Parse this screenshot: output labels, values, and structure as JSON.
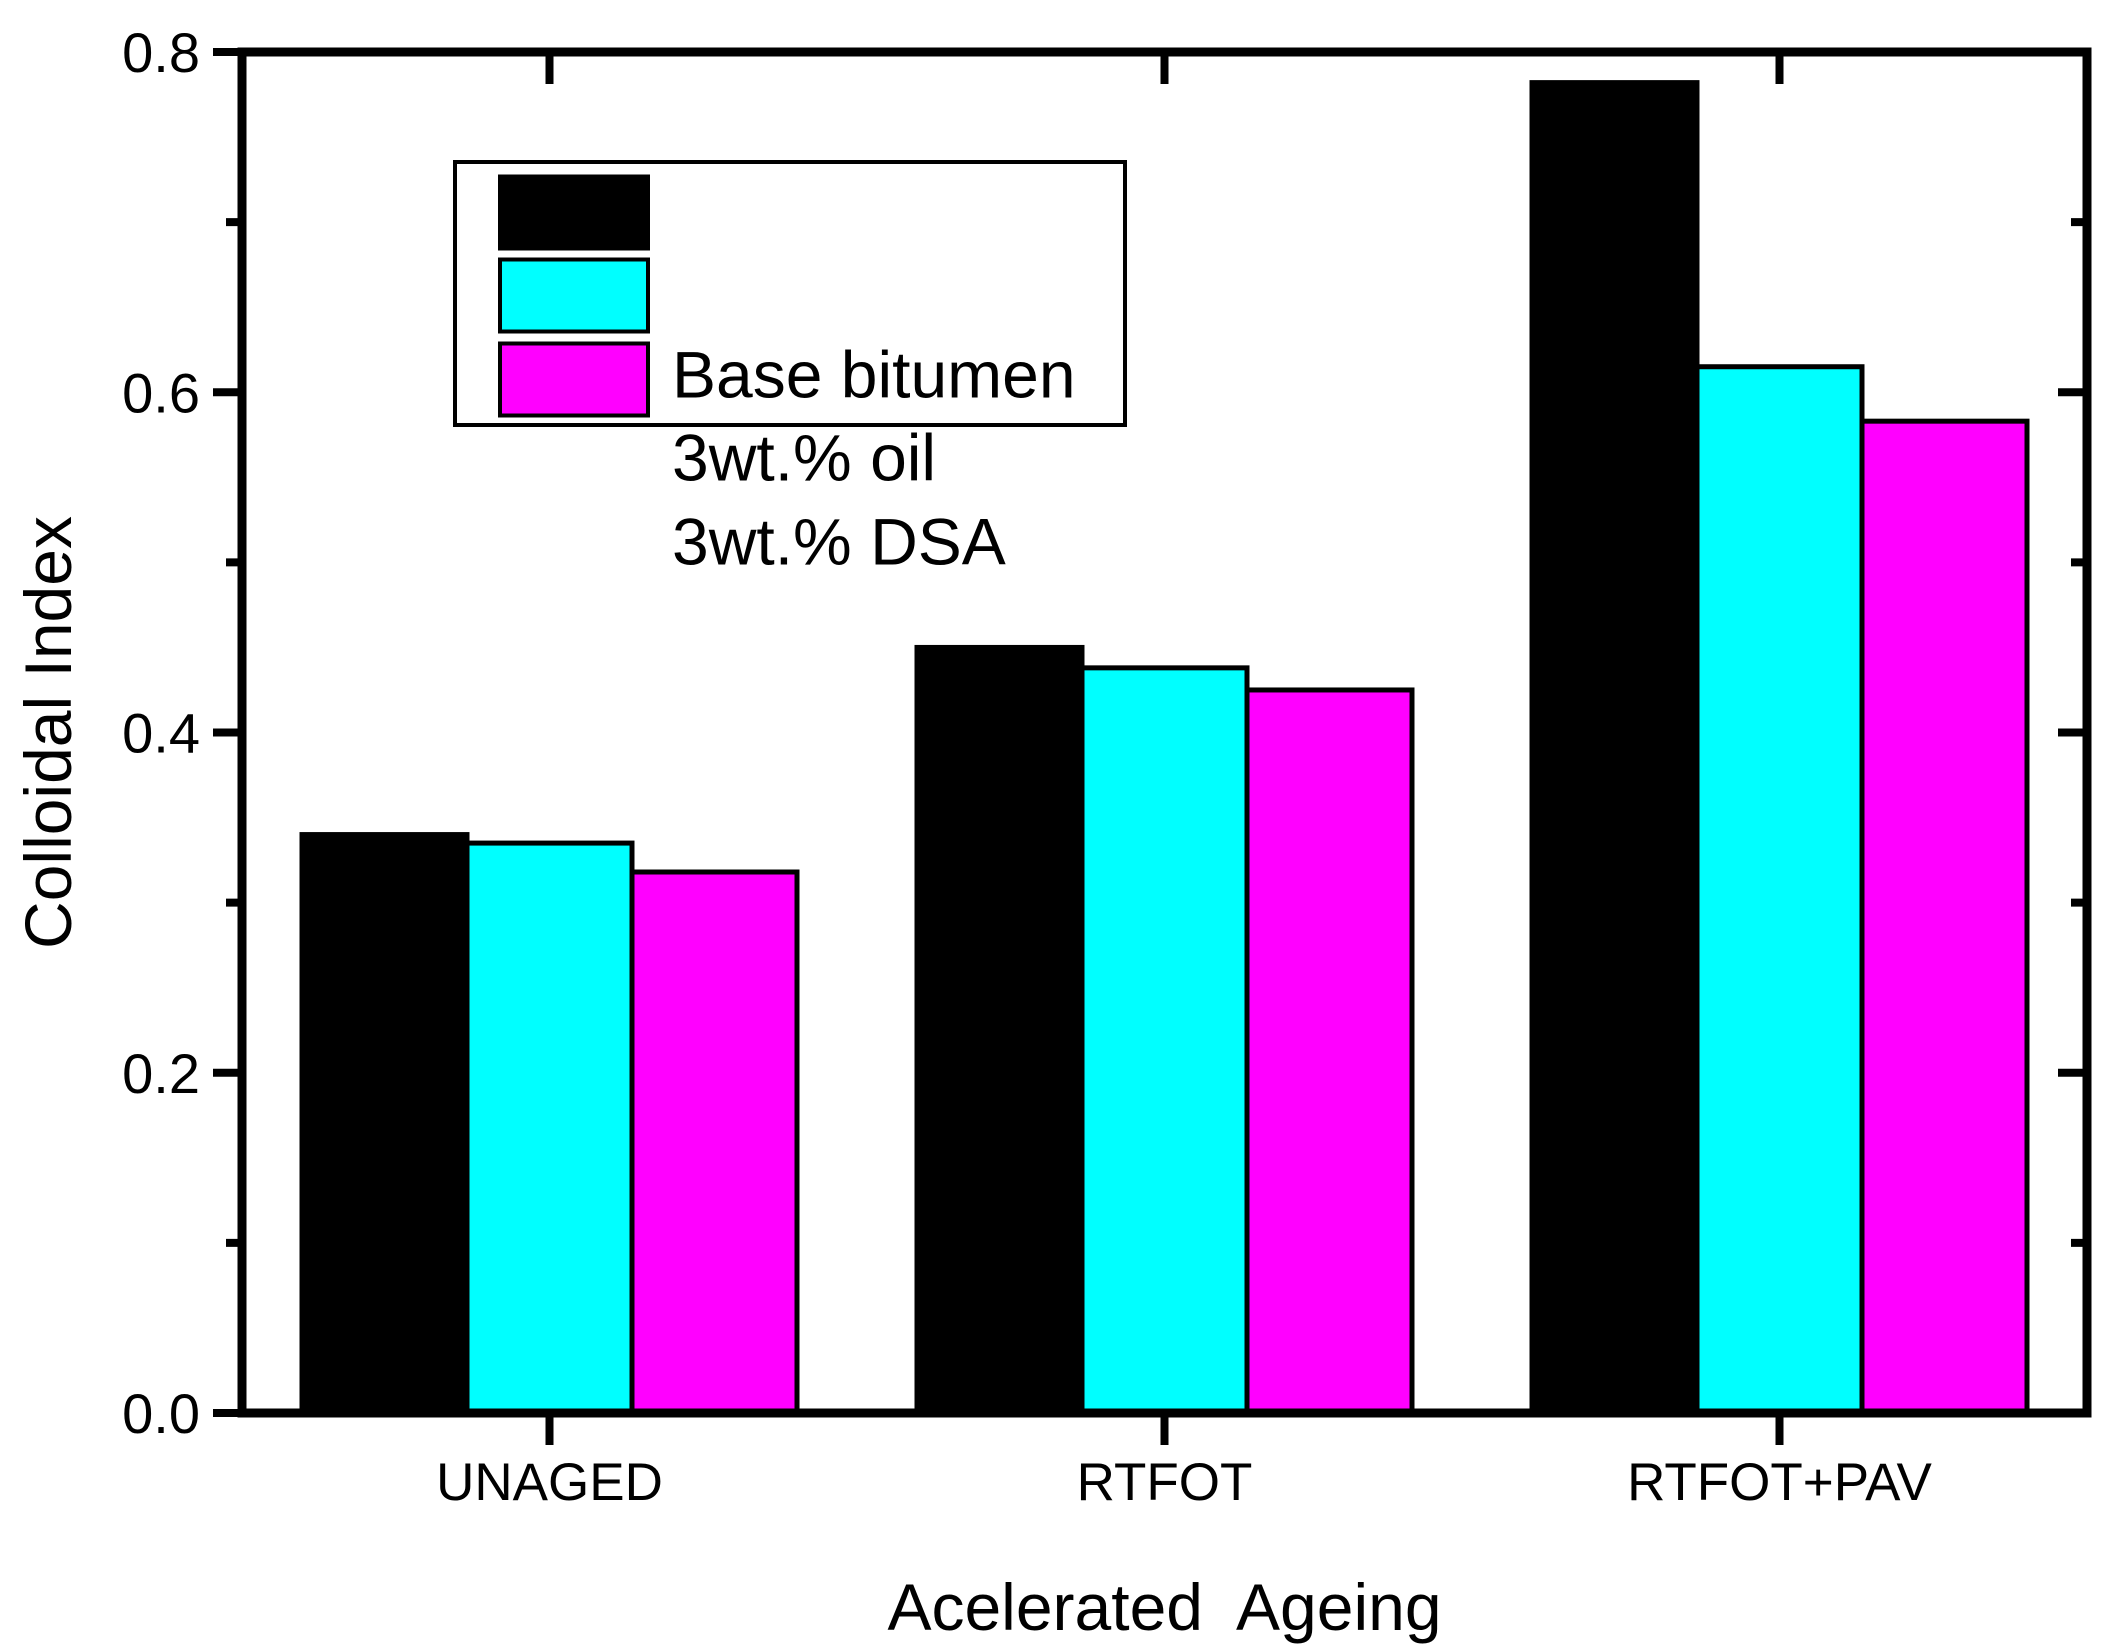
{
  "chart_data": {
    "type": "bar",
    "title": "",
    "xlabel": "Acelerated  Ageing",
    "ylabel": "Colloidal Index",
    "categories": [
      "UNAGED",
      "RTFOT",
      "RTFOT+PAV"
    ],
    "series": [
      {
        "name": "Base bitumen",
        "color": "#000000",
        "values": [
          0.34,
          0.45,
          0.782
        ]
      },
      {
        "name": "3wt.% oil",
        "color": "#00FFFF",
        "values": [
          0.335,
          0.438,
          0.615
        ]
      },
      {
        "name": "3wt.% DSA",
        "color": "#FF00FF",
        "values": [
          0.318,
          0.425,
          0.583
        ]
      }
    ],
    "ylim": [
      0.0,
      0.8
    ],
    "ytick_labels": [
      "0.0",
      "0.2",
      "0.4",
      "0.6",
      "0.8"
    ],
    "ytick_values": [
      0.0,
      0.2,
      0.4,
      0.6,
      0.8
    ],
    "yminor_values": [
      0.1,
      0.3,
      0.5,
      0.7
    ],
    "grid": false,
    "legend_position": "upper-left-inside",
    "axis_color": "#000000",
    "bar_edge_color": "#000000",
    "background": "#FFFFFF"
  }
}
